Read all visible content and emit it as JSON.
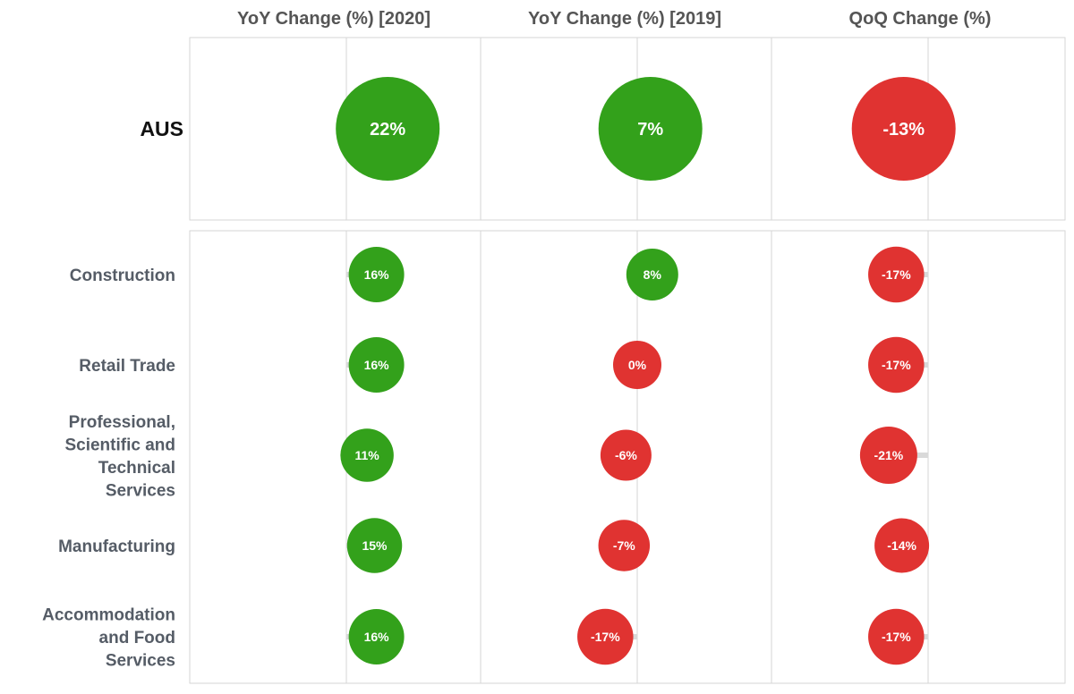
{
  "chart_data": {
    "type": "scatter",
    "measures": [
      {
        "name": "YoY Change (%) [2020]"
      },
      {
        "name": "YoY Change (%) [2019]"
      },
      {
        "name": "QoQ Change (%)"
      }
    ],
    "summary_row": {
      "label": "AUS",
      "values": [
        22,
        7,
        -13
      ],
      "value_labels": [
        "22%",
        "7%",
        "-13%"
      ]
    },
    "rows": [
      {
        "label": [
          "Construction"
        ],
        "values": [
          16,
          8,
          -17
        ],
        "value_labels": [
          "16%",
          "8%",
          "-17%"
        ]
      },
      {
        "label": [
          "Retail Trade"
        ],
        "values": [
          16,
          0,
          -17
        ],
        "value_labels": [
          "16%",
          "0%",
          "-17%"
        ]
      },
      {
        "label": [
          "Professional,",
          "Scientific and",
          "Technical",
          "Services"
        ],
        "values": [
          11,
          -6,
          -21
        ],
        "value_labels": [
          "11%",
          "-6%",
          "-21%"
        ]
      },
      {
        "label": [
          "Manufacturing"
        ],
        "values": [
          15,
          -7,
          -14
        ],
        "value_labels": [
          "15%",
          "-7%",
          "-14%"
        ]
      },
      {
        "label": [
          "Accommodation",
          "and Food",
          "Services"
        ],
        "values": [
          16,
          -17,
          -17
        ],
        "value_labels": [
          "16%",
          "-17%",
          "-17%"
        ]
      }
    ],
    "colors": {
      "positive": "#33a11b",
      "negative": "#e03331"
    }
  }
}
